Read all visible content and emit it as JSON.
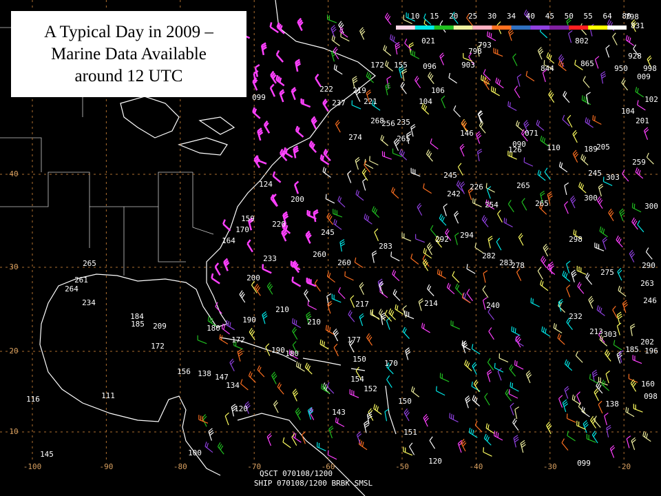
{
  "title_lines": [
    "A Typical Day in 2009 –",
    "Marine Data Available",
    "around 12 UTC"
  ],
  "colorbar_labels": [
    10,
    15,
    20,
    25,
    30,
    34,
    40,
    45,
    50,
    55,
    64,
    80
  ],
  "longitude_labels": [
    -100,
    -90,
    -80,
    -70,
    -60,
    -50,
    -40,
    -30,
    -20
  ],
  "latitude_labels": [
    40,
    30,
    20,
    10
  ],
  "footer_lines": [
    "QSCT 070108/1200",
    "SHIP 070108/1200   BRBK SMSL"
  ],
  "station_labels": [
    "798",
    "831",
    "021",
    "793",
    "798",
    "802",
    "928",
    "172",
    "155",
    "096",
    "903",
    "844",
    "865",
    "950",
    "998",
    "009",
    "222",
    "219",
    "106",
    "237",
    "221",
    "104",
    "102",
    "099",
    "268",
    "256",
    "235",
    "104",
    "201",
    "146",
    "274",
    "265",
    "071",
    "090",
    "126",
    "110",
    "189",
    "205",
    "259",
    "245",
    "226",
    "265",
    "245",
    "303",
    "124",
    "200",
    "242",
    "254",
    "265",
    "300",
    "300",
    "159",
    "220",
    "170",
    "164",
    "245",
    "292",
    "294",
    "298",
    "283",
    "260",
    "233",
    "282",
    "283",
    "278",
    "260",
    "290",
    "275",
    "200",
    "263",
    "234",
    "217",
    "214",
    "240",
    "246",
    "210",
    "232",
    "190",
    "210",
    "184",
    "185",
    "209",
    "180",
    "213",
    "303",
    "177",
    "172",
    "172",
    "202",
    "185",
    "196",
    "190",
    "180",
    "150",
    "170",
    "156",
    "138",
    "147",
    "154",
    "134",
    "152",
    "160",
    "116",
    "111",
    "150",
    "138",
    "098",
    "120",
    "143",
    "151",
    "100",
    "145",
    "120",
    "099",
    "264",
    "261",
    "265"
  ]
}
